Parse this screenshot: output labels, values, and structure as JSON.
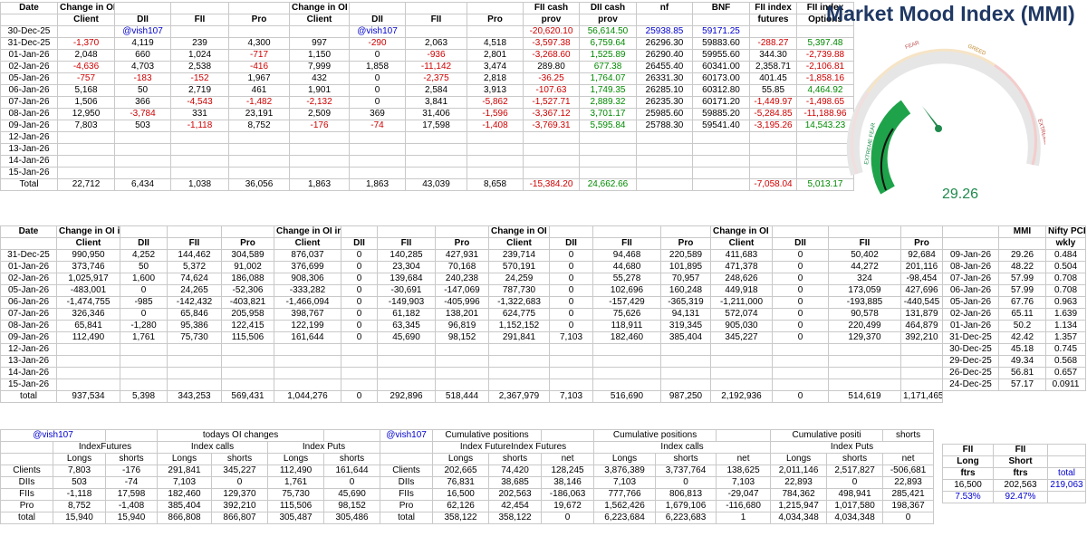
{
  "mmi": {
    "title": "Market Mood Index (MMI)",
    "value": "29.26",
    "zones": [
      "FEAR",
      "GREED",
      "EXTREME FEAR",
      "EXTREME GREED"
    ]
  },
  "top": {
    "headers": [
      [
        "Date",
        "Change in OI in Future Index Long",
        "",
        "",
        "",
        "Change in OI in Future Index Short",
        "",
        "",
        "",
        "FII cash",
        "DII cash",
        "nf",
        "BNF",
        "FII index",
        "FII index"
      ],
      [
        "",
        "Client",
        "DII",
        "FII",
        "Pro",
        "Client",
        "DII",
        "FII",
        "Pro",
        "prov",
        "prov",
        "",
        "",
        "futures",
        "Options"
      ]
    ],
    "rows": [
      [
        "30-Dec-25",
        "",
        "@vish107",
        "",
        "",
        "",
        "@vish107",
        "",
        "",
        "-20,620.10",
        "56,614.50",
        "25938.85",
        "59171.25",
        "",
        ""
      ],
      [
        "31-Dec-25",
        "-1,370",
        "4,119",
        "239",
        "4,300",
        "997",
        "-290",
        "2,063",
        "4,518",
        "-3,597.38",
        "6,759.64",
        "26296.30",
        "59883.60",
        "-288.27",
        "5,397.48"
      ],
      [
        "01-Jan-26",
        "2,048",
        "660",
        "1,024",
        "-717",
        "1,150",
        "0",
        "-936",
        "2,801",
        "-3,268.60",
        "1,525.89",
        "26290.40",
        "59955.60",
        "344.30",
        "-2,739.88"
      ],
      [
        "02-Jan-26",
        "-4,636",
        "4,703",
        "2,538",
        "-416",
        "7,999",
        "1,858",
        "-11,142",
        "3,474",
        "289.80",
        "677.38",
        "26455.40",
        "60341.00",
        "2,358.71",
        "-2,106.81"
      ],
      [
        "05-Jan-26",
        "-757",
        "-183",
        "-152",
        "1,967",
        "432",
        "0",
        "-2,375",
        "2,818",
        "-36.25",
        "1,764.07",
        "26331.30",
        "60173.00",
        "401.45",
        "-1,858.16"
      ],
      [
        "06-Jan-26",
        "5,168",
        "50",
        "2,719",
        "461",
        "1,901",
        "0",
        "2,584",
        "3,913",
        "-107.63",
        "1,749.35",
        "26285.10",
        "60312.80",
        "55.85",
        "4,464.92"
      ],
      [
        "07-Jan-26",
        "1,506",
        "366",
        "-4,543",
        "-1,482",
        "-2,132",
        "0",
        "3,841",
        "-5,862",
        "-1,527.71",
        "2,889.32",
        "26235.30",
        "60171.20",
        "-1,449.97",
        "-1,498.65"
      ],
      [
        "08-Jan-26",
        "12,950",
        "-3,784",
        "331",
        "23,191",
        "2,509",
        "369",
        "31,406",
        "-1,596",
        "-3,367.12",
        "3,701.17",
        "25985.60",
        "59885.20",
        "-5,284.85",
        "-11,188.96"
      ],
      [
        "09-Jan-26",
        "7,803",
        "503",
        "-1,118",
        "8,752",
        "-176",
        "-74",
        "17,598",
        "-1,408",
        "-3,769.31",
        "5,595.84",
        "25788.30",
        "59541.40",
        "-3,195.26",
        "14,543.23"
      ],
      [
        "12-Jan-26",
        "",
        "",
        "",
        "",
        "",
        "",
        "",
        "",
        "",
        "",
        "",
        "",
        "",
        ""
      ],
      [
        "13-Jan-26",
        "",
        "",
        "",
        "",
        "",
        "",
        "",
        "",
        "",
        "",
        "",
        "",
        "",
        ""
      ],
      [
        "14-Jan-26",
        "",
        "",
        "",
        "",
        "",
        "",
        "",
        "",
        "",
        "",
        "",
        "",
        "",
        ""
      ],
      [
        "15-Jan-26",
        "",
        "",
        "",
        "",
        "",
        "",
        "",
        "",
        "",
        "",
        "",
        "",
        "",
        ""
      ]
    ],
    "total": [
      "Total",
      "22,712",
      "6,434",
      "1,038",
      "36,056",
      "1,863",
      "1,863",
      "43,039",
      "8,658",
      "-15,384.20",
      "24,662.66",
      "",
      "",
      "-7,058.04",
      "5,013.17"
    ]
  },
  "mid": {
    "headers": [
      [
        "Date",
        "Change in OI in Index Puts Long",
        "",
        "",
        "",
        "Change in OI in Index Puts short",
        "",
        "",
        "",
        "Change in OI in Index calls Long",
        "",
        "",
        "",
        "Change in OI in Index calls short",
        "",
        "",
        ""
      ],
      [
        "",
        "Client",
        "DII",
        "FII",
        "Pro",
        "Client",
        "DII",
        "FII",
        "Pro",
        "Client",
        "DII",
        "FII",
        "Pro",
        "Client",
        "DII",
        "FII",
        "Pro"
      ]
    ],
    "rows": [
      [
        "31-Dec-25",
        "990,950",
        "4,252",
        "144,462",
        "304,589",
        "876,037",
        "0",
        "140,285",
        "427,931",
        "239,714",
        "0",
        "94,468",
        "220,589",
        "411,683",
        "0",
        "50,402",
        "92,684"
      ],
      [
        "01-Jan-26",
        "373,746",
        "50",
        "5,372",
        "91,002",
        "376,699",
        "0",
        "23,304",
        "70,168",
        "570,191",
        "0",
        "44,680",
        "101,895",
        "471,378",
        "0",
        "44,272",
        "201,116"
      ],
      [
        "02-Jan-26",
        "1,025,917",
        "1,600",
        "74,624",
        "186,088",
        "908,306",
        "0",
        "139,684",
        "240,238",
        "24,259",
        "0",
        "55,278",
        "70,957",
        "248,626",
        "0",
        "324",
        "-98,454"
      ],
      [
        "05-Jan-26",
        "-483,001",
        "0",
        "24,265",
        "-52,306",
        "-333,282",
        "0",
        "-30,691",
        "-147,069",
        "787,730",
        "0",
        "102,696",
        "160,248",
        "449,918",
        "0",
        "173,059",
        "427,696"
      ],
      [
        "06-Jan-26",
        "-1,474,755",
        "-985",
        "-142,432",
        "-403,821",
        "-1,466,094",
        "0",
        "-149,903",
        "-405,996",
        "-1,322,683",
        "0",
        "-157,429",
        "-365,319",
        "-1,211,000",
        "0",
        "-193,885",
        "-440,545"
      ],
      [
        "07-Jan-26",
        "326,346",
        "0",
        "65,846",
        "205,958",
        "398,767",
        "0",
        "61,182",
        "138,201",
        "624,775",
        "0",
        "75,626",
        "94,131",
        "572,074",
        "0",
        "90,578",
        "131,879"
      ],
      [
        "08-Jan-26",
        "65,841",
        "-1,280",
        "95,386",
        "122,415",
        "122,199",
        "0",
        "63,345",
        "96,819",
        "1,152,152",
        "0",
        "118,911",
        "319,345",
        "905,030",
        "0",
        "220,499",
        "464,879"
      ],
      [
        "09-Jan-26",
        "112,490",
        "1,761",
        "75,730",
        "115,506",
        "161,644",
        "0",
        "45,690",
        "98,152",
        "291,841",
        "7,103",
        "182,460",
        "385,404",
        "345,227",
        "0",
        "129,370",
        "392,210"
      ],
      [
        "12-Jan-26",
        "",
        "",
        "",
        "",
        "",
        "",
        "",
        "",
        "",
        "",
        "",
        "",
        "",
        "",
        "",
        ""
      ],
      [
        "13-Jan-26",
        "",
        "",
        "",
        "",
        "",
        "",
        "",
        "",
        "",
        "",
        "",
        "",
        "",
        "",
        "",
        ""
      ],
      [
        "14-Jan-26",
        "",
        "",
        "",
        "",
        "",
        "",
        "",
        "",
        "",
        "",
        "",
        "",
        "",
        "",
        "",
        ""
      ],
      [
        "15-Jan-26",
        "",
        "",
        "",
        "",
        "",
        "",
        "",
        "",
        "",
        "",
        "",
        "",
        "",
        "",
        "",
        ""
      ]
    ],
    "total": [
      "total",
      "937,534",
      "5,398",
      "343,253",
      "569,431",
      "1,044,276",
      "0",
      "292,896",
      "518,444",
      "2,367,979",
      "7,103",
      "516,690",
      "987,250",
      "2,192,936",
      "0",
      "514,619",
      "1,171,465"
    ]
  },
  "side": {
    "header": [
      "",
      "MMI",
      "Nifty PCR"
    ],
    "sub": [
      "",
      "",
      "wkly"
    ],
    "rows": [
      [
        "09-Jan-26",
        "29.26",
        "0.484"
      ],
      [
        "08-Jan-26",
        "48.22",
        "0.504"
      ],
      [
        "07-Jan-26",
        "57.99",
        "0.708"
      ],
      [
        "06-Jan-26",
        "57.99",
        "0.708"
      ],
      [
        "05-Jan-26",
        "67.76",
        "0.963"
      ],
      [
        "02-Jan-26",
        "65.11",
        "1.639"
      ],
      [
        "01-Jan-26",
        "50.2",
        "1.134"
      ],
      [
        "31-Dec-25",
        "42.42",
        "1.357"
      ],
      [
        "30-Dec-25",
        "45.18",
        "0.745"
      ],
      [
        "29-Dec-25",
        "49.34",
        "0.568"
      ],
      [
        "26-Dec-25",
        "56.81",
        "0.657"
      ],
      [
        "24-Dec-25",
        "57.17",
        "0.0911"
      ]
    ]
  },
  "bottom": {
    "tag1": "@vish107",
    "todays": "todays OI changes",
    "tag2": "@vish107",
    "cum1": "Cumulative positions",
    "cum2": "Cumulative positions",
    "cum3": "Cumulative positi",
    "shorts": "shorts",
    "net": "net",
    "groups1": [
      "IndexFutures",
      "Index calls",
      "Index Puts"
    ],
    "groups2": [
      "Index FutureIndex Futures",
      "Index calls",
      "Index Puts"
    ],
    "sub": [
      "",
      "Longs",
      "shorts",
      "Longs",
      "shorts",
      "Longs",
      "shorts",
      "",
      "Longs",
      "shorts",
      "net",
      "Longs",
      "shorts",
      "net",
      "Longs",
      "shorts",
      "net"
    ],
    "rows": [
      [
        "Clients",
        "7,803",
        "-176",
        "291,841",
        "345,227",
        "112,490",
        "161,644",
        "Clients",
        "202,665",
        "74,420",
        "128,245",
        "3,876,389",
        "3,737,764",
        "138,625",
        "2,011,146",
        "2,517,827",
        "-506,681"
      ],
      [
        "DIIs",
        "503",
        "-74",
        "7,103",
        "0",
        "1,761",
        "0",
        "DIIs",
        "76,831",
        "38,685",
        "38,146",
        "7,103",
        "0",
        "7,103",
        "22,893",
        "0",
        "22,893"
      ],
      [
        "FIIs",
        "-1,118",
        "17,598",
        "182,460",
        "129,370",
        "75,730",
        "45,690",
        "FIIs",
        "16,500",
        "202,563",
        "-186,063",
        "777,766",
        "806,813",
        "-29,047",
        "784,362",
        "498,941",
        "285,421"
      ],
      [
        "Pro",
        "8,752",
        "-1,408",
        "385,404",
        "392,210",
        "115,506",
        "98,152",
        "Pro",
        "62,126",
        "42,454",
        "19,672",
        "1,562,426",
        "1,679,106",
        "-116,680",
        "1,215,947",
        "1,017,580",
        "198,367"
      ],
      [
        "total",
        "15,940",
        "15,940",
        "866,808",
        "866,807",
        "305,487",
        "305,486",
        "total",
        "358,122",
        "358,122",
        "0",
        "6,223,684",
        "6,223,683",
        "1",
        "4,034,348",
        "4,034,348",
        "0"
      ]
    ]
  },
  "fii": {
    "h1": [
      "FII",
      "FII"
    ],
    "h2": [
      "Long",
      "Short"
    ],
    "h3": [
      "ftrs",
      "ftrs"
    ],
    "vals": [
      "16,500",
      "202,563"
    ],
    "pct": [
      "7.53%",
      "92.47%"
    ],
    "total_label": "total",
    "total_val": "219,063"
  }
}
